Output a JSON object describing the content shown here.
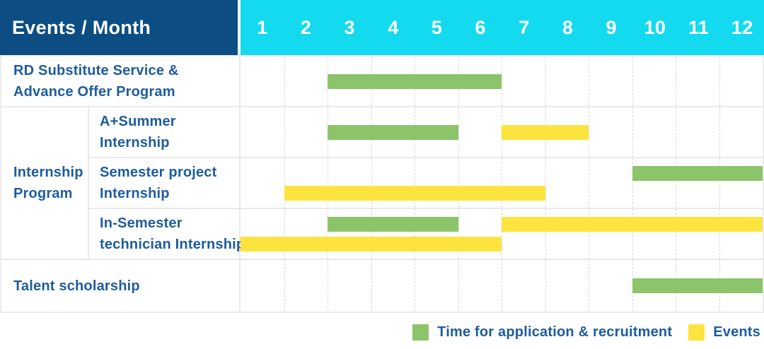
{
  "header": {
    "title": "Events / Month"
  },
  "colors": {
    "header_bg": "#0c4e83",
    "months_bg": "#13daee",
    "recruitment": "#8cc46a",
    "event": "#fde33e",
    "label_text": "#1e5c9e",
    "header_text": "#ffffff"
  },
  "legend": [
    {
      "key": "recruitment",
      "label": "Time for application & recruitment"
    },
    {
      "key": "event",
      "label": "Events"
    }
  ],
  "chart_data": {
    "type": "bar",
    "subtype": "gantt-timeline",
    "title": "Events / Month",
    "x_axis": {
      "label": "Month",
      "ticks": [
        "1",
        "2",
        "3",
        "4",
        "5",
        "6",
        "7",
        "8",
        "9",
        "10",
        "11",
        "12"
      ],
      "range": [
        1,
        12
      ]
    },
    "series": [
      {
        "name": "Time for application & recruitment",
        "key": "recruitment",
        "color": "#8cc46a"
      },
      {
        "name": "Events",
        "key": "event",
        "color": "#fde33e"
      }
    ],
    "sections": [
      {
        "kind": "row",
        "label_lines": [
          "RD Substitute Service &",
          "Advance Offer Program"
        ],
        "lanes": 1,
        "bars": [
          {
            "series": "recruitment",
            "start_month": 3.0,
            "end_month": 7.0,
            "lane": 1
          }
        ]
      },
      {
        "kind": "group",
        "label_lines": [
          "Internship",
          "Program"
        ],
        "rows": [
          {
            "label_lines": [
              "A+Summer",
              "Internship"
            ],
            "lanes": 1,
            "bars": [
              {
                "series": "recruitment",
                "start_month": 3.0,
                "end_month": 6.0,
                "lane": 1
              },
              {
                "series": "event",
                "start_month": 7.0,
                "end_month": 9.0,
                "lane": 1
              }
            ]
          },
          {
            "label_lines": [
              "Semester project",
              "Internship"
            ],
            "lanes": 2,
            "bars": [
              {
                "series": "recruitment",
                "start_month": 10.0,
                "end_month": 13.0,
                "lane": 1
              },
              {
                "series": "event",
                "start_month": 2.0,
                "end_month": 8.0,
                "lane": 2
              }
            ]
          },
          {
            "label_lines": [
              "In-Semester",
              "technician Internship"
            ],
            "lanes": 2,
            "bars": [
              {
                "series": "recruitment",
                "start_month": 3.0,
                "end_month": 6.0,
                "lane": 1
              },
              {
                "series": "event",
                "start_month": 7.0,
                "end_month": 13.0,
                "lane": 1
              },
              {
                "series": "event",
                "start_month": 1.0,
                "end_month": 7.0,
                "lane": 2
              }
            ]
          }
        ]
      },
      {
        "kind": "row",
        "label_lines": [
          "Talent scholarship"
        ],
        "lanes": 1,
        "bars": [
          {
            "series": "recruitment",
            "start_month": 10.0,
            "end_month": 13.0,
            "lane": 1
          }
        ]
      }
    ]
  }
}
